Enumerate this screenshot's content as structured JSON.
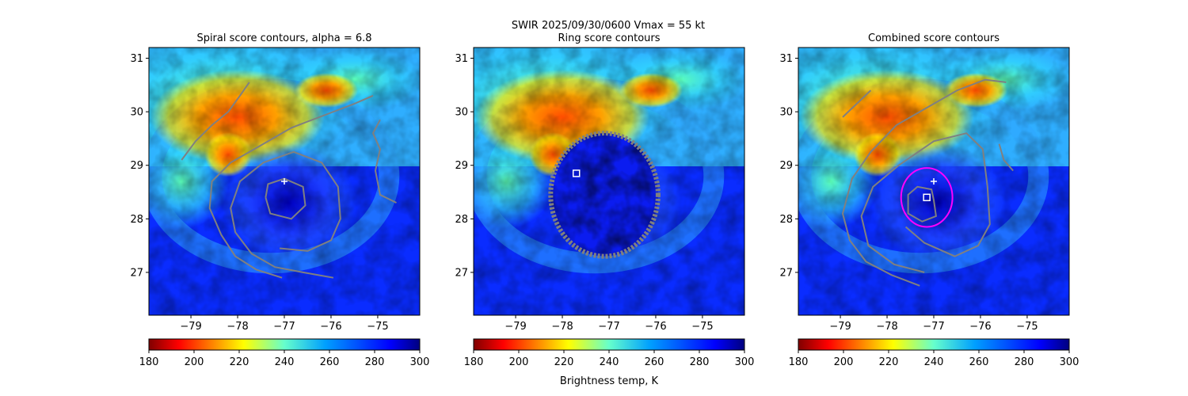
{
  "suptitle_line1": "SWIR  2025/09/30/0600    Vmax = 55 kt",
  "colorbar_label": "Brightness temp, K",
  "chart_data": [
    {
      "type": "heatmap",
      "title": "Spiral score contours, alpha =  6.8",
      "xlim": [
        -79.9,
        -74.1
      ],
      "ylim": [
        26.2,
        31.2
      ],
      "xticks": [
        -79,
        -78,
        -77,
        -76,
        -75
      ],
      "yticks": [
        27,
        28,
        29,
        30,
        31
      ],
      "xtick_labels": [
        "−79",
        "−78",
        "−77",
        "−76",
        "−75"
      ],
      "ytick_labels": [
        "27",
        "28",
        "29",
        "30",
        "31"
      ],
      "colorbar": {
        "min": 180,
        "max": 300,
        "ticks": [
          180,
          200,
          220,
          240,
          260,
          280,
          300
        ],
        "colormap": "jet_r"
      },
      "best_track_marker": {
        "symbol": "plus",
        "lon": -77.0,
        "lat": 28.7,
        "color": "#ffffff"
      },
      "contours": [
        [
          [
            -79.2,
            29.1
          ],
          [
            -78.9,
            29.45
          ],
          [
            -78.55,
            29.75
          ],
          [
            -78.2,
            30.0
          ],
          [
            -77.95,
            30.3
          ],
          [
            -77.75,
            30.55
          ]
        ],
        [
          [
            -77.05,
            26.9
          ],
          [
            -77.6,
            27.05
          ],
          [
            -78.05,
            27.3
          ],
          [
            -78.35,
            27.7
          ],
          [
            -78.6,
            28.2
          ],
          [
            -78.55,
            28.7
          ],
          [
            -78.15,
            29.05
          ],
          [
            -77.55,
            29.35
          ],
          [
            -76.85,
            29.7
          ],
          [
            -76.1,
            29.95
          ],
          [
            -75.5,
            30.15
          ],
          [
            -75.1,
            30.3
          ]
        ],
        [
          [
            -75.95,
            26.9
          ],
          [
            -76.6,
            27.0
          ],
          [
            -77.2,
            27.1
          ],
          [
            -77.7,
            27.35
          ],
          [
            -78.05,
            27.75
          ],
          [
            -78.15,
            28.2
          ],
          [
            -77.95,
            28.7
          ],
          [
            -77.45,
            29.05
          ],
          [
            -76.8,
            29.25
          ],
          [
            -76.2,
            29.05
          ],
          [
            -75.85,
            28.6
          ],
          [
            -75.8,
            28.0
          ],
          [
            -76.0,
            27.6
          ],
          [
            -76.5,
            27.4
          ],
          [
            -77.1,
            27.45
          ]
        ],
        [
          [
            -77.4,
            28.4
          ],
          [
            -77.3,
            28.1
          ],
          [
            -76.85,
            28.0
          ],
          [
            -76.55,
            28.25
          ],
          [
            -76.6,
            28.6
          ],
          [
            -77.0,
            28.75
          ],
          [
            -77.35,
            28.65
          ],
          [
            -77.4,
            28.4
          ]
        ],
        [
          [
            -74.6,
            28.3
          ],
          [
            -74.95,
            28.45
          ],
          [
            -75.05,
            28.9
          ],
          [
            -74.95,
            29.3
          ],
          [
            -75.1,
            29.6
          ],
          [
            -74.95,
            29.85
          ]
        ]
      ]
    },
    {
      "type": "heatmap",
      "title": "Ring score contours",
      "xlim": [
        -79.9,
        -74.1
      ],
      "ylim": [
        26.2,
        31.2
      ],
      "xticks": [
        -79,
        -78,
        -77,
        -76,
        -75
      ],
      "yticks": [
        27,
        28,
        29,
        30,
        31
      ],
      "xtick_labels": [
        "−79",
        "−78",
        "−77",
        "−76",
        "−75"
      ],
      "ytick_labels": [
        "27",
        "28",
        "29",
        "30",
        "31"
      ],
      "colorbar": {
        "min": 180,
        "max": 300,
        "ticks": [
          180,
          200,
          220,
          240,
          260,
          280,
          300
        ],
        "colormap": "jet_r"
      },
      "ring_region": {
        "center_lon": -77.1,
        "center_lat": 28.45,
        "radius_deg": 1.15
      },
      "best_score_marker": {
        "symbol": "square",
        "lon": -77.7,
        "lat": 28.85,
        "color": "#ffffff"
      }
    },
    {
      "type": "heatmap",
      "title": "Combined score contours",
      "xlim": [
        -79.9,
        -74.1
      ],
      "ylim": [
        26.2,
        31.2
      ],
      "xticks": [
        -79,
        -78,
        -77,
        -76,
        -75
      ],
      "yticks": [
        27,
        28,
        29,
        30,
        31
      ],
      "xtick_labels": [
        "−79",
        "−78",
        "−77",
        "−76",
        "−75"
      ],
      "ytick_labels": [
        "27",
        "28",
        "29",
        "30",
        "31"
      ],
      "colorbar": {
        "min": 180,
        "max": 300,
        "ticks": [
          180,
          200,
          220,
          240,
          260,
          280,
          300
        ],
        "colormap": "jet_r"
      },
      "best_track_marker": {
        "symbol": "plus",
        "lon": -77.0,
        "lat": 28.7,
        "color": "#ffffff"
      },
      "best_score_marker": {
        "symbol": "square",
        "lon": -77.15,
        "lat": 28.4,
        "color": "#ffffff"
      },
      "circle": {
        "center_lon": -77.15,
        "center_lat": 28.4,
        "radius_deg": 0.55,
        "color": "#ff00ff"
      },
      "contours": [
        [
          [
            -78.95,
            29.9
          ],
          [
            -78.65,
            30.15
          ],
          [
            -78.35,
            30.4
          ]
        ],
        [
          [
            -77.3,
            26.75
          ],
          [
            -77.9,
            26.95
          ],
          [
            -78.45,
            27.2
          ],
          [
            -78.8,
            27.6
          ],
          [
            -78.95,
            28.1
          ],
          [
            -78.75,
            28.75
          ],
          [
            -78.35,
            29.25
          ],
          [
            -77.8,
            29.75
          ],
          [
            -77.1,
            30.1
          ],
          [
            -76.5,
            30.4
          ],
          [
            -75.9,
            30.6
          ],
          [
            -75.45,
            30.55
          ]
        ],
        [
          [
            -77.2,
            27.0
          ],
          [
            -77.85,
            27.15
          ],
          [
            -78.4,
            27.5
          ],
          [
            -78.55,
            28.05
          ],
          [
            -78.3,
            28.6
          ],
          [
            -77.75,
            29.0
          ],
          [
            -77.0,
            29.45
          ],
          [
            -76.3,
            29.6
          ],
          [
            -75.95,
            29.3
          ],
          [
            -75.85,
            28.6
          ],
          [
            -75.8,
            27.9
          ],
          [
            -76.05,
            27.5
          ],
          [
            -76.55,
            27.3
          ],
          [
            -77.2,
            27.55
          ],
          [
            -77.6,
            27.85
          ]
        ],
        [
          [
            -77.0,
            28.35
          ],
          [
            -76.95,
            28.05
          ],
          [
            -77.25,
            27.95
          ],
          [
            -77.55,
            28.1
          ],
          [
            -77.55,
            28.45
          ],
          [
            -77.35,
            28.6
          ],
          [
            -77.05,
            28.55
          ],
          [
            -77.0,
            28.35
          ]
        ],
        [
          [
            -75.3,
            28.9
          ],
          [
            -75.5,
            29.1
          ],
          [
            -75.6,
            29.4
          ]
        ]
      ]
    }
  ]
}
